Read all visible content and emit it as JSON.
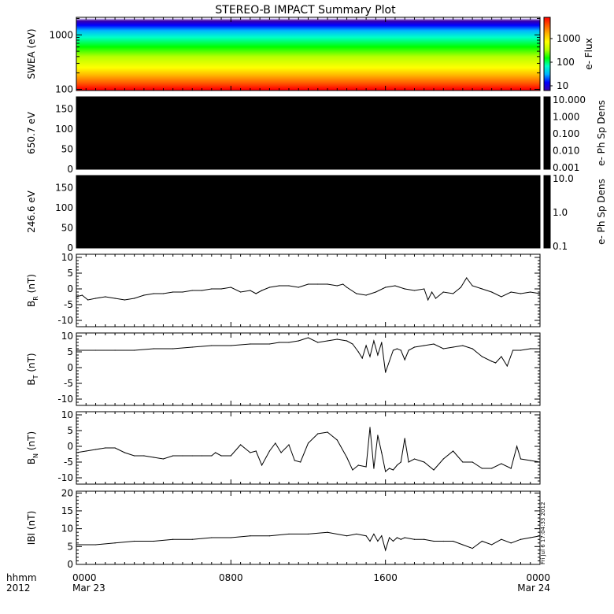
{
  "title": "STEREO-B IMPACT Summary Plot",
  "x_axis": {
    "ticks": [
      {
        "hours": 0,
        "time": "0000",
        "date": "Mar 23"
      },
      {
        "hours": 8,
        "time": "0800",
        "date": ""
      },
      {
        "hours": 16,
        "time": "1600",
        "date": ""
      },
      {
        "hours": 24,
        "time": "0000",
        "date": "Mar 24"
      }
    ],
    "left_labels": [
      "hhmm",
      "2012"
    ],
    "range_hours": [
      0,
      24
    ]
  },
  "stamp": "Fri Jul 6 17:04:33 2012",
  "colors": {
    "background": "#ffffff",
    "axis": "#000000",
    "line": "#000000",
    "pad_fill": "#000000",
    "colorbar": [
      "#3800a8",
      "#0000ff",
      "#00b4ff",
      "#00ffc8",
      "#00ff00",
      "#b4ff00",
      "#ffff00",
      "#ffb400",
      "#ff5a00",
      "#ff0000"
    ]
  },
  "chart_data": [
    {
      "type": "heatmap",
      "panel": "SWEA spectrogram",
      "ylabel": "SWEA (eV)",
      "yscale": "log",
      "ylim": [
        95,
        2100
      ],
      "yticks": [
        "100",
        "1000"
      ],
      "colorbar": {
        "label": "e- Flux",
        "scale": "log",
        "ticks": [
          "10",
          "100",
          "1000"
        ]
      },
      "bands": [
        {
          "energy_eV": 1800,
          "color": "#3800a8"
        },
        {
          "energy_eV": 1500,
          "color": "#0000ff"
        },
        {
          "energy_eV": 1200,
          "color": "#00b4ff"
        },
        {
          "energy_eV": 900,
          "color": "#00ffc8"
        },
        {
          "energy_eV": 600,
          "color": "#00ff00"
        },
        {
          "energy_eV": 400,
          "color": "#b4ff00"
        },
        {
          "energy_eV": 250,
          "color": "#ffff00"
        },
        {
          "energy_eV": 180,
          "color": "#ffb400"
        },
        {
          "energy_eV": 130,
          "color": "#ff5a00"
        },
        {
          "energy_eV": 100,
          "color": "#ff0000"
        }
      ]
    },
    {
      "type": "heatmap",
      "panel": "650.7 eV pitch angle",
      "ylabel": "650.7  eV",
      "ylim": [
        0,
        180
      ],
      "yticks": [
        0,
        50,
        100,
        150
      ],
      "fill": "all black",
      "colorbar": {
        "label": "e- Ph Sp Dens",
        "scale": "log",
        "ticks": [
          "10.000",
          "1.000",
          "0.100",
          "0.010",
          "0.001"
        ]
      }
    },
    {
      "type": "heatmap",
      "panel": "246.6 eV pitch angle",
      "ylabel": "246.6  eV",
      "ylim": [
        0,
        180
      ],
      "yticks": [
        0,
        50,
        100,
        150
      ],
      "fill": "all black",
      "colorbar": {
        "label": "e- Ph Sp Dens",
        "scale": "log",
        "ticks": [
          "10.0",
          "1.0",
          "0.1"
        ]
      }
    },
    {
      "type": "line",
      "panel": "BR",
      "ylabel": {
        "main": "B",
        "sub": "R",
        "unit": " (nT)"
      },
      "ylim": [
        -12,
        11
      ],
      "yticks": [
        -10,
        -5,
        0,
        5,
        10
      ],
      "x": [
        0,
        0.3,
        0.6,
        1,
        1.5,
        2,
        2.5,
        3,
        3.5,
        4,
        4.5,
        5,
        5.5,
        6,
        6.5,
        7,
        7.5,
        8,
        8.5,
        9,
        9.3,
        9.6,
        10,
        10.5,
        11,
        11.5,
        12,
        12.5,
        13,
        13.5,
        13.8,
        14,
        14.5,
        15,
        15.5,
        16,
        16.5,
        17,
        17.5,
        18,
        18.2,
        18.4,
        18.6,
        19,
        19.5,
        19.9,
        20.2,
        20.5,
        21,
        21.5,
        22,
        22.5,
        23,
        23.5,
        24
      ],
      "y": [
        -2.5,
        -2,
        -3.5,
        -3,
        -2.5,
        -3,
        -3.5,
        -3,
        -2,
        -1.5,
        -1.5,
        -1,
        -1,
        -0.5,
        -0.5,
        0,
        0,
        0.5,
        -1,
        -0.5,
        -1.5,
        -0.5,
        0.5,
        1,
        1,
        0.5,
        1.5,
        1.5,
        1.5,
        1,
        1.5,
        0.5,
        -1.5,
        -2,
        -1,
        0.5,
        1,
        0,
        -0.5,
        0,
        -3.5,
        -1,
        -3,
        -1,
        -1.5,
        0.5,
        3.5,
        1,
        0,
        -1,
        -2.5,
        -1,
        -1.5,
        -1,
        -1.5
      ]
    },
    {
      "type": "line",
      "panel": "BT",
      "ylabel": {
        "main": "B",
        "sub": "T",
        "unit": " (nT)"
      },
      "ylim": [
        -12,
        11
      ],
      "yticks": [
        -10,
        -5,
        0,
        5,
        10
      ],
      "x": [
        0,
        1,
        2,
        3,
        4,
        5,
        6,
        7,
        8,
        9,
        10,
        10.5,
        11,
        11.5,
        12,
        12.5,
        13,
        13.5,
        14,
        14.3,
        14.6,
        14.8,
        15,
        15.2,
        15.4,
        15.6,
        15.8,
        16,
        16.2,
        16.4,
        16.6,
        16.8,
        17,
        17.2,
        17.5,
        18,
        18.5,
        19,
        19.5,
        20,
        20.5,
        21,
        21.5,
        21.7,
        22,
        22.3,
        22.6,
        23,
        23.5,
        24
      ],
      "y": [
        5.5,
        5.5,
        5.5,
        5.5,
        6,
        6,
        6.5,
        7,
        7,
        7.5,
        7.5,
        8,
        8,
        8.5,
        9.5,
        8,
        8.5,
        9,
        8.5,
        7.5,
        5,
        3,
        7,
        3.5,
        8.5,
        4,
        8,
        -1.5,
        2,
        5.5,
        6,
        5.5,
        2.5,
        5.5,
        6.5,
        7,
        7.5,
        6,
        6.5,
        7,
        6,
        3.5,
        2,
        1.5,
        3.5,
        0.5,
        5.5,
        5.5,
        6,
        6
      ]
    },
    {
      "type": "line",
      "panel": "BN",
      "ylabel": {
        "main": "B",
        "sub": "N",
        "unit": " (nT)"
      },
      "ylim": [
        -12,
        11
      ],
      "yticks": [
        -10,
        -5,
        0,
        5,
        10
      ],
      "x": [
        0,
        0.5,
        1,
        1.5,
        2,
        2.5,
        3,
        3.5,
        4,
        4.5,
        5,
        5.5,
        6,
        6.5,
        7,
        7.2,
        7.5,
        8,
        8.5,
        9,
        9.3,
        9.6,
        10,
        10.3,
        10.6,
        11,
        11.3,
        11.6,
        12,
        12.5,
        13,
        13.5,
        14,
        14.3,
        14.6,
        15,
        15.2,
        15.4,
        15.6,
        15.8,
        16,
        16.2,
        16.4,
        16.6,
        16.8,
        17,
        17.2,
        17.5,
        18,
        18.5,
        19,
        19.5,
        20,
        20.5,
        21,
        21.5,
        22,
        22.5,
        22.8,
        23,
        23.5,
        24
      ],
      "y": [
        -2,
        -1.5,
        -1,
        -0.5,
        -0.5,
        -2,
        -3,
        -3,
        -3.5,
        -4,
        -3,
        -3,
        -3,
        -3,
        -3,
        -2,
        -3,
        -3,
        0.5,
        -2,
        -1.5,
        -6,
        -1.5,
        1,
        -2,
        0.5,
        -4.5,
        -5,
        1,
        4,
        4.5,
        2,
        -3.5,
        -7.5,
        -6,
        -6.5,
        6,
        -7,
        3.5,
        -2,
        -8,
        -7,
        -7.5,
        -6,
        -5,
        2.5,
        -5,
        -4,
        -5,
        -7.5,
        -4,
        -1.5,
        -5,
        -5,
        -7,
        -7,
        -5.5,
        -7,
        0,
        -4,
        -4.5,
        -5
      ]
    },
    {
      "type": "line",
      "panel": "|B|",
      "ylabel": {
        "main": "IBI",
        "sub": "",
        "unit": " (nT)"
      },
      "ylim": [
        0,
        20.5
      ],
      "yticks": [
        0,
        5,
        10,
        15,
        20
      ],
      "x": [
        0,
        1,
        2,
        3,
        4,
        5,
        6,
        7,
        8,
        9,
        10,
        11,
        12,
        13,
        14,
        14.5,
        15,
        15.2,
        15.4,
        15.6,
        15.8,
        16,
        16.2,
        16.4,
        16.6,
        16.8,
        17,
        17.5,
        18,
        18.5,
        19,
        19.5,
        20,
        20.5,
        21,
        21.5,
        22,
        22.5,
        23,
        23.5,
        24
      ],
      "y": [
        5.5,
        5.5,
        6,
        6.5,
        6.5,
        7,
        7,
        7.5,
        7.5,
        8,
        8,
        8.5,
        8.5,
        9,
        8,
        8.5,
        8,
        6.5,
        8.5,
        6.5,
        8,
        4,
        7.5,
        6.5,
        7.5,
        7,
        7.5,
        7,
        7,
        6.5,
        6.5,
        6.5,
        5.5,
        4.5,
        6.5,
        5.5,
        7,
        6,
        7,
        7.5,
        8
      ]
    }
  ]
}
